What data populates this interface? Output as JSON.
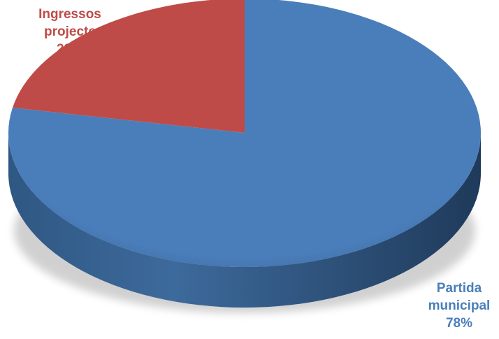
{
  "chart_data": {
    "type": "pie",
    "title": "",
    "slices": [
      {
        "name_lines": [
          "Partida",
          "municipal"
        ],
        "percent_label": "78%",
        "value": 78,
        "color": "#4a7ebb"
      },
      {
        "name_lines": [
          "Ingressos",
          "projecte"
        ],
        "percent_label": "22%",
        "value": 22,
        "color": "#be4b48"
      }
    ],
    "style": "3d",
    "legend": "none"
  }
}
